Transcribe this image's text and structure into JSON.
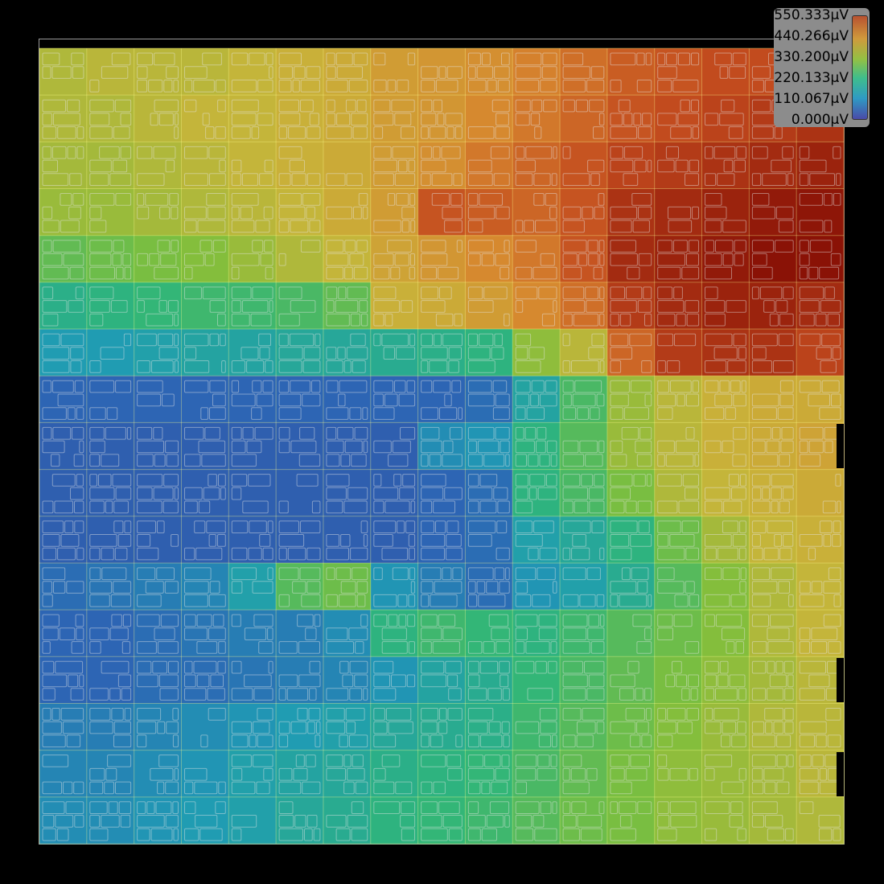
{
  "map": {
    "rows": 17,
    "cols": 17,
    "grid": [
      [
        320,
        330,
        330,
        330,
        340,
        350,
        360,
        380,
        390,
        400,
        420,
        440,
        460,
        470,
        480,
        480,
        490
      ],
      [
        320,
        320,
        330,
        340,
        340,
        350,
        360,
        380,
        390,
        410,
        430,
        450,
        470,
        480,
        490,
        500,
        510
      ],
      [
        310,
        310,
        320,
        330,
        340,
        350,
        360,
        380,
        400,
        430,
        450,
        470,
        490,
        500,
        510,
        520,
        530
      ],
      [
        300,
        300,
        310,
        320,
        330,
        340,
        360,
        380,
        470,
        460,
        450,
        470,
        510,
        520,
        530,
        540,
        545
      ],
      [
        250,
        260,
        270,
        280,
        300,
        320,
        340,
        370,
        390,
        410,
        430,
        470,
        520,
        530,
        540,
        550,
        550
      ],
      [
        190,
        200,
        210,
        220,
        220,
        230,
        250,
        350,
        360,
        380,
        410,
        440,
        500,
        520,
        530,
        530,
        520
      ],
      [
        140,
        140,
        150,
        160,
        160,
        170,
        170,
        180,
        190,
        200,
        290,
        330,
        450,
        500,
        510,
        510,
        490
      ],
      [
        70,
        70,
        70,
        70,
        70,
        70,
        70,
        70,
        70,
        80,
        160,
        230,
        300,
        330,
        350,
        360,
        360
      ],
      [
        60,
        60,
        60,
        60,
        60,
        60,
        60,
        60,
        120,
        130,
        200,
        240,
        300,
        330,
        350,
        360,
        370
      ],
      [
        60,
        60,
        60,
        60,
        60,
        60,
        60,
        60,
        70,
        80,
        200,
        230,
        270,
        320,
        340,
        350,
        360
      ],
      [
        60,
        60,
        60,
        60,
        60,
        60,
        60,
        60,
        70,
        80,
        150,
        170,
        200,
        260,
        310,
        340,
        350
      ],
      [
        80,
        90,
        100,
        110,
        150,
        240,
        260,
        130,
        100,
        80,
        130,
        150,
        180,
        240,
        280,
        320,
        340
      ],
      [
        70,
        70,
        80,
        90,
        100,
        100,
        120,
        200,
        220,
        210,
        200,
        220,
        240,
        260,
        280,
        320,
        340
      ],
      [
        70,
        70,
        80,
        80,
        90,
        100,
        110,
        130,
        160,
        180,
        210,
        230,
        250,
        270,
        290,
        310,
        330
      ],
      [
        100,
        100,
        110,
        120,
        130,
        140,
        150,
        170,
        180,
        190,
        220,
        240,
        260,
        280,
        300,
        320,
        330
      ],
      [
        110,
        110,
        120,
        130,
        150,
        160,
        170,
        190,
        200,
        210,
        230,
        250,
        270,
        290,
        300,
        310,
        330
      ],
      [
        120,
        120,
        130,
        140,
        150,
        170,
        180,
        200,
        210,
        220,
        240,
        260,
        270,
        290,
        300,
        310,
        320
      ]
    ]
  },
  "legend": {
    "labels": [
      "550.333µV",
      "440.266µV",
      "330.200µV",
      "220.133µV",
      "110.067µV",
      "0.000µV"
    ],
    "max": 550.333,
    "min": 0.0
  },
  "colormap": [
    "#3a3a8c",
    "#2d64b4",
    "#1f9bb4",
    "#2fb57a",
    "#7fbf3c",
    "#c8b43a",
    "#d7872f",
    "#c24a1e",
    "#8a1206"
  ]
}
